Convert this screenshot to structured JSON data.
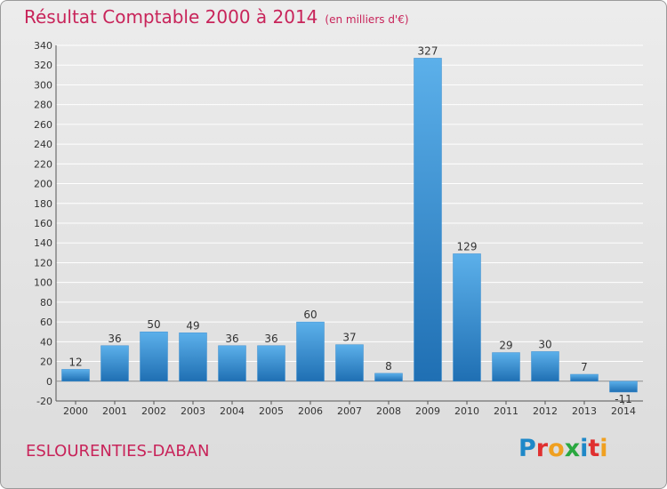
{
  "header": {
    "title": "Résultat Comptable 2000 à 2014",
    "unit": "(en milliers d'€)"
  },
  "footer": {
    "town": "ESLOURENTIES-DABAN",
    "logo": "Proxiti"
  },
  "colors": {
    "title": "#c8245a",
    "bar_light": "#5cb0ea",
    "bar_dark": "#1f6fb3",
    "grid": "#ffffff",
    "logo_letters": [
      "#1e88c8",
      "#e03030",
      "#f0a020",
      "#2aa840",
      "#1e88c8",
      "#e03030",
      "#f0a020"
    ]
  },
  "chart_data": {
    "type": "bar",
    "title": "Résultat Comptable 2000 à 2014",
    "xlabel": "",
    "ylabel": "",
    "categories": [
      "2000",
      "2001",
      "2002",
      "2003",
      "2004",
      "2005",
      "2006",
      "2007",
      "2008",
      "2009",
      "2010",
      "2011",
      "2012",
      "2013",
      "2014"
    ],
    "values": [
      12,
      36,
      50,
      49,
      36,
      36,
      60,
      37,
      8,
      327,
      129,
      29,
      30,
      7,
      -11
    ],
    "ylim": [
      -20,
      340
    ],
    "yticks": [
      -20,
      0,
      20,
      40,
      60,
      80,
      100,
      120,
      140,
      160,
      180,
      200,
      220,
      240,
      260,
      280,
      300,
      320,
      340
    ],
    "grid": true,
    "legend": "none"
  }
}
